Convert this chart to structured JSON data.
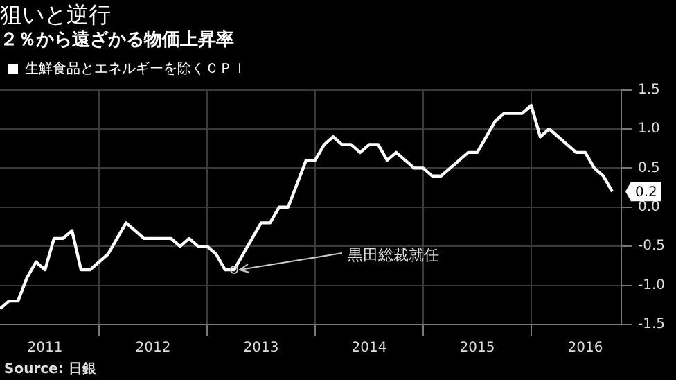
{
  "chart_data": {
    "type": "line",
    "title": "狙いと逆行",
    "subtitle": "２％から遠ざかる物価上昇率",
    "x": [
      "2011-02",
      "2011-03",
      "2011-04",
      "2011-05",
      "2011-06",
      "2011-07",
      "2011-08",
      "2011-09",
      "2011-10",
      "2011-11",
      "2011-12",
      "2012-01",
      "2012-02",
      "2012-03",
      "2012-04",
      "2012-05",
      "2012-06",
      "2012-07",
      "2012-08",
      "2012-09",
      "2012-10",
      "2012-11",
      "2012-12",
      "2013-01",
      "2013-02",
      "2013-03",
      "2013-04",
      "2013-05",
      "2013-06",
      "2013-07",
      "2013-08",
      "2013-09",
      "2013-10",
      "2013-11",
      "2013-12",
      "2014-01",
      "2014-02",
      "2014-03",
      "2014-04",
      "2014-05",
      "2014-06",
      "2014-07",
      "2014-08",
      "2014-09",
      "2014-10",
      "2014-11",
      "2014-12",
      "2015-01",
      "2015-02",
      "2015-03",
      "2015-04",
      "2015-05",
      "2015-06",
      "2015-07",
      "2015-08",
      "2015-09",
      "2015-10",
      "2015-11",
      "2015-12",
      "2016-01",
      "2016-02",
      "2016-03",
      "2016-04",
      "2016-05",
      "2016-06",
      "2016-07",
      "2016-08",
      "2016-09",
      "2016-10"
    ],
    "series": [
      {
        "name": "生鮮食品とエネルギーを除くＣＰＩ",
        "color": "#ffffff",
        "values": [
          -1.3,
          -1.2,
          -1.2,
          -0.9,
          -0.7,
          -0.8,
          -0.4,
          -0.4,
          -0.3,
          -0.8,
          -0.8,
          -0.7,
          -0.6,
          -0.4,
          -0.2,
          -0.3,
          -0.4,
          -0.4,
          -0.4,
          -0.4,
          -0.5,
          -0.4,
          -0.5,
          -0.5,
          -0.6,
          -0.8,
          -0.8,
          -0.6,
          -0.4,
          -0.2,
          -0.2,
          0.0,
          0.0,
          0.3,
          0.6,
          0.6,
          0.8,
          0.9,
          0.8,
          0.8,
          0.7,
          0.8,
          0.8,
          0.6,
          0.7,
          0.6,
          0.5,
          0.5,
          0.4,
          0.4,
          0.5,
          0.6,
          0.7,
          0.7,
          0.9,
          1.1,
          1.2,
          1.2,
          1.2,
          1.3,
          0.9,
          1.0,
          0.9,
          0.8,
          0.7,
          0.7,
          0.5,
          0.4,
          0.2
        ],
        "value_labels": [
          null,
          null,
          null,
          null,
          null,
          null,
          null,
          null,
          null,
          null,
          null,
          null,
          null,
          null,
          null,
          null,
          null,
          null,
          null,
          null,
          null,
          null,
          null,
          null,
          null,
          null,
          null,
          null,
          null,
          null,
          null,
          null,
          null,
          null,
          null,
          null,
          null,
          null,
          null,
          null,
          null,
          null,
          null,
          null,
          null,
          null,
          null,
          null,
          null,
          null,
          null,
          null,
          null,
          null,
          null,
          null,
          null,
          null,
          null,
          null,
          null,
          null,
          null,
          null,
          null,
          null,
          null,
          null,
          "0.2"
        ]
      }
    ],
    "xlim": [
      "2011-02",
      "2016-11"
    ],
    "xticks": [
      {
        "value": "2011-07",
        "label": "2011"
      },
      {
        "value": "2012-01",
        "label": null
      },
      {
        "value": "2012-07",
        "label": "2012"
      },
      {
        "value": "2013-01",
        "label": null
      },
      {
        "value": "2013-07",
        "label": "2013"
      },
      {
        "value": "2014-01",
        "label": null
      },
      {
        "value": "2014-07",
        "label": "2014"
      },
      {
        "value": "2015-01",
        "label": null
      },
      {
        "value": "2015-07",
        "label": "2015"
      },
      {
        "value": "2016-01",
        "label": null
      },
      {
        "value": "2016-07",
        "label": "2016"
      }
    ],
    "ylim": [
      -1.5,
      1.5
    ],
    "yticks": [
      {
        "value": -1.5,
        "label": "-1.5"
      },
      {
        "value": -1,
        "label": "-1.0"
      },
      {
        "value": -0.5,
        "label": "-0.5"
      },
      {
        "value": 0,
        "label": "0.0"
      },
      {
        "value": 0.5,
        "label": "0.5"
      },
      {
        "value": 1,
        "label": "1.0"
      },
      {
        "value": 1.5,
        "label": "1.5"
      }
    ],
    "grid": true,
    "legend": "top left",
    "marker": "none",
    "line_style": "solid",
    "annotations": [
      {
        "text": "黒田総裁就任",
        "x": "2013-04",
        "y": -0.8
      },
      "Source: 日銀"
    ]
  }
}
